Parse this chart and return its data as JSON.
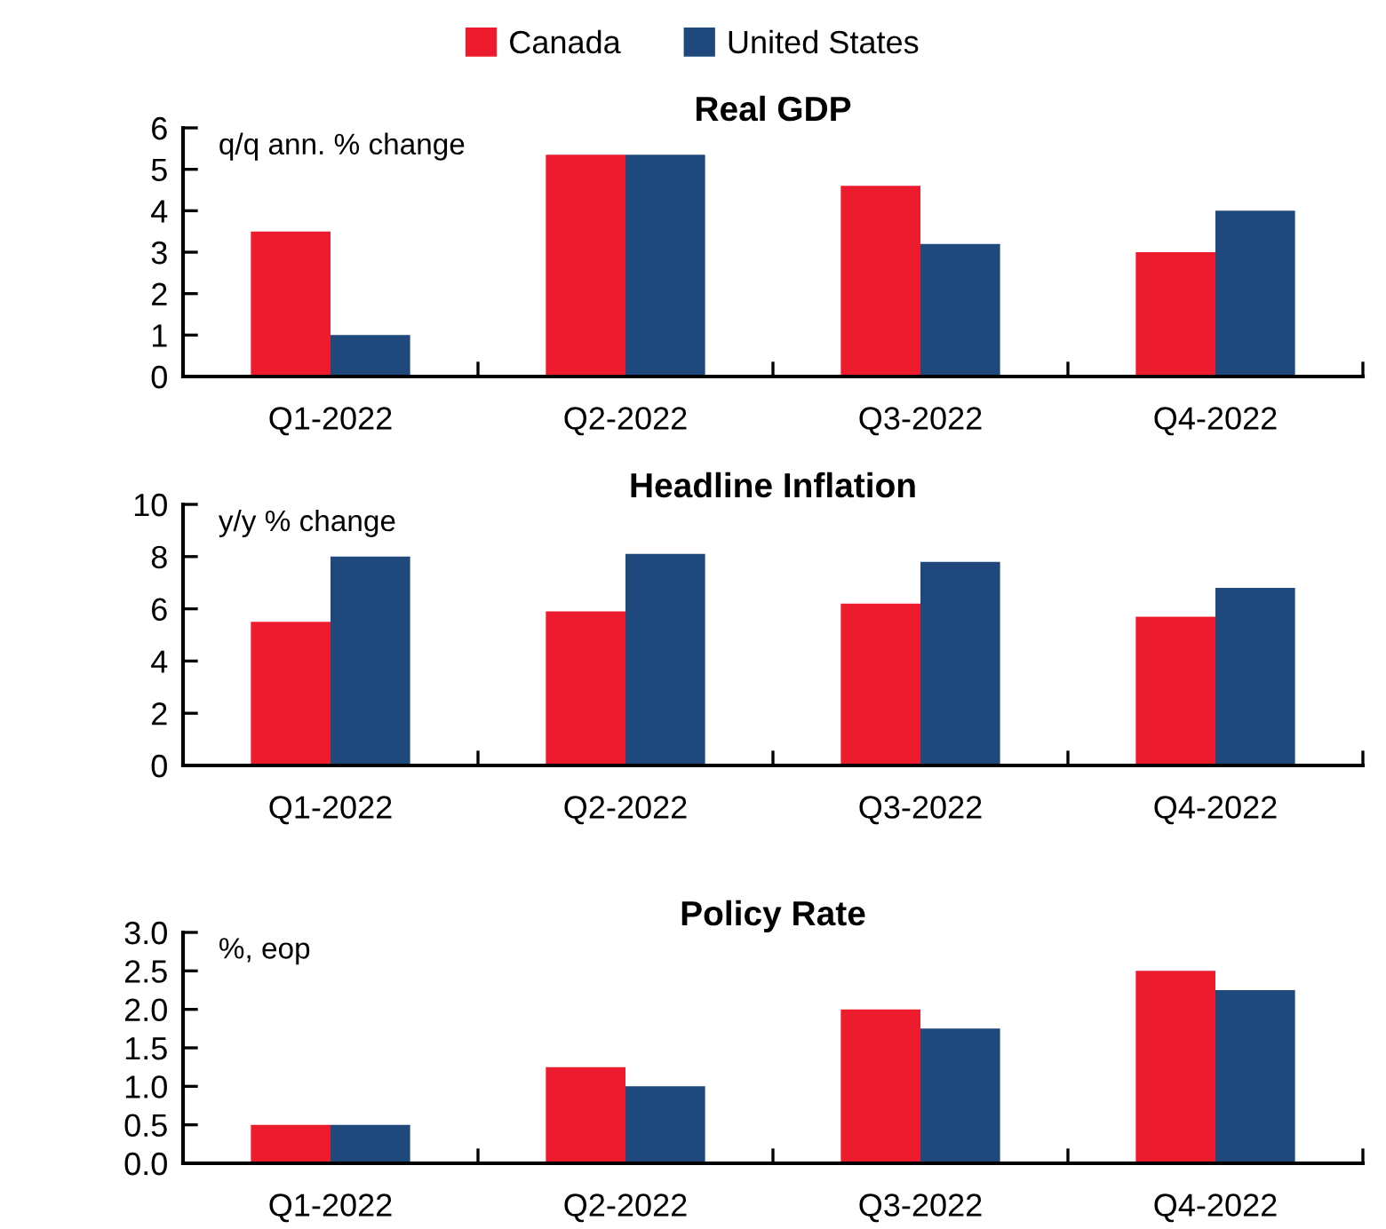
{
  "chart_data": [
    {
      "type": "bar",
      "title": "Real GDP",
      "categories": [
        "Q1-2022",
        "Q2-2022",
        "Q3-2022",
        "Q4-2022"
      ],
      "series": [
        {
          "name": "Canada",
          "color": "#ed1b2e",
          "values": [
            3.5,
            5.35,
            4.6,
            3.0
          ]
        },
        {
          "name": "United States",
          "color": "#1f497d",
          "values": [
            1.0,
            5.35,
            3.2,
            4.0
          ]
        }
      ],
      "ylim": [
        0,
        6
      ],
      "yticks": [
        0,
        1,
        2,
        3,
        4,
        5,
        6
      ],
      "annotations": [
        "q/q ann. % change"
      ],
      "legend": "top",
      "grid": false
    },
    {
      "type": "bar",
      "title": "Headline Inflation",
      "categories": [
        "Q1-2022",
        "Q2-2022",
        "Q3-2022",
        "Q4-2022"
      ],
      "series": [
        {
          "color": "#ed1b2e",
          "values": [
            5.5,
            5.9,
            6.2,
            5.7
          ]
        },
        {
          "color": "#1f497d",
          "values": [
            8.0,
            8.1,
            7.8,
            6.8
          ]
        }
      ],
      "ylim": [
        0,
        10
      ],
      "yticks": [
        0,
        2,
        4,
        6,
        8,
        10
      ],
      "annotations": [
        "y/y % change"
      ],
      "grid": false
    },
    {
      "type": "bar",
      "title": "Policy Rate",
      "categories": [
        "Q1-2022",
        "Q2-2022",
        "Q3-2022",
        "Q4-2022"
      ],
      "series": [
        {
          "color": "#ed1b2e",
          "values": [
            0.5,
            1.25,
            2.0,
            2.5
          ]
        },
        {
          "color": "#1f497d",
          "values": [
            0.5,
            1.0,
            1.75,
            2.25
          ]
        }
      ],
      "ylim": [
        0,
        3.0
      ],
      "yticks": [
        {
          "value": 0,
          "label": "0.0"
        },
        {
          "value": 0.5,
          "label": "0.5"
        },
        {
          "value": 1.0,
          "label": "1.0"
        },
        {
          "value": 1.5,
          "label": "1.5"
        },
        {
          "value": 2.0,
          "label": "2.0"
        },
        {
          "value": 2.5,
          "label": "2.5"
        },
        {
          "value": 3.0,
          "label": "3.0"
        }
      ],
      "annotations": [
        "%, eop"
      ],
      "grid": false
    }
  ]
}
